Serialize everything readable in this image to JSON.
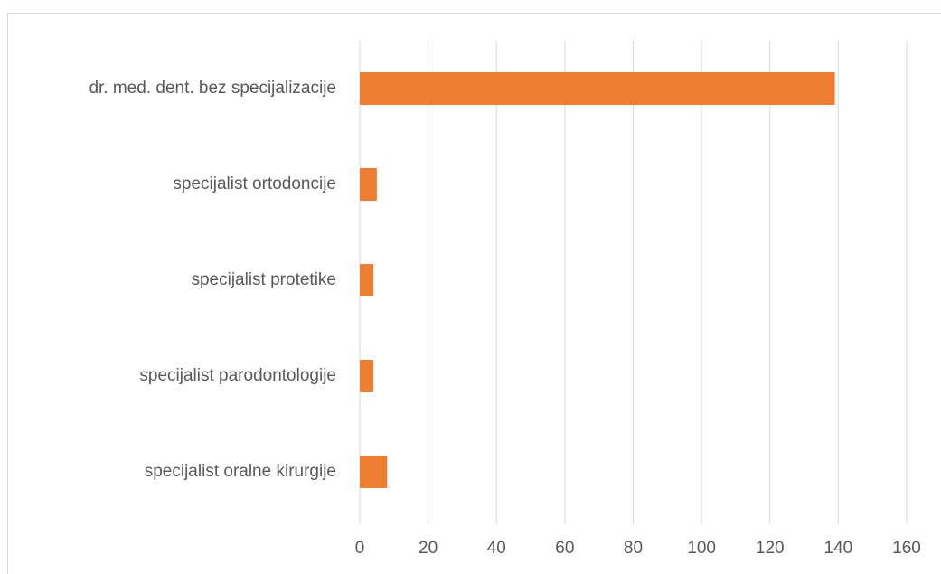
{
  "chart_data": {
    "type": "bar",
    "orientation": "horizontal",
    "categories": [
      "dr. med. dent. bez specijalizacije",
      "specijalist ortodoncije",
      "specijalist protetike",
      "specijalist parodontologije",
      "specijalist oralne kirurgije"
    ],
    "values": [
      139,
      5,
      4,
      4,
      8
    ],
    "color": "#ed7d31",
    "xlim": [
      0,
      160
    ],
    "xticks": [
      0,
      20,
      40,
      60,
      80,
      100,
      120,
      140,
      160
    ],
    "grid": true
  }
}
